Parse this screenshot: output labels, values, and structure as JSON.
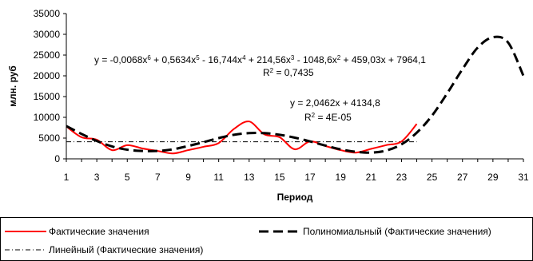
{
  "chart_data": {
    "type": "line",
    "title": "",
    "xlabel": "Период",
    "ylabel": "млн. руб",
    "ylim": [
      0,
      35000
    ],
    "xlim": [
      1,
      31
    ],
    "x_ticks": [
      "1",
      "3",
      "5",
      "7",
      "9",
      "11",
      "13",
      "15",
      "17",
      "19",
      "21",
      "23",
      "25",
      "27",
      "29",
      "31"
    ],
    "y_ticks": [
      "0",
      "5000",
      "10000",
      "15000",
      "20000",
      "25000",
      "30000",
      "35000"
    ],
    "grid": false,
    "legend_position": "bottom",
    "series": [
      {
        "name": "Фактические значения",
        "color": "#ff0000",
        "style": "solid",
        "x": [
          1,
          2,
          3,
          4,
          5,
          6,
          7,
          8,
          9,
          10,
          11,
          12,
          13,
          14,
          15,
          16,
          17,
          18,
          19,
          20,
          21,
          22,
          23,
          24
        ],
        "values": [
          7800,
          5200,
          4600,
          2100,
          3300,
          2500,
          1900,
          1300,
          2100,
          2900,
          3800,
          7200,
          9000,
          5900,
          5200,
          2300,
          4200,
          3100,
          2100,
          1500,
          2400,
          3300,
          4200,
          8400
        ]
      },
      {
        "name": "Полиномиальный (Фактические значения)",
        "color": "#000000",
        "style": "dashed",
        "x": [
          1,
          2,
          3,
          4,
          5,
          6,
          7,
          8,
          9,
          10,
          11,
          12,
          13,
          14,
          15,
          16,
          17,
          18,
          19,
          20,
          21,
          22,
          23,
          24,
          25,
          26,
          27,
          28,
          29,
          30,
          31
        ],
        "values": [
          7900,
          6000,
          4300,
          3000,
          2200,
          1900,
          1900,
          2300,
          3100,
          4000,
          5000,
          5800,
          6200,
          6200,
          5800,
          5100,
          4200,
          3200,
          2300,
          1700,
          1500,
          2000,
          3500,
          6300,
          10400,
          15800,
          21600,
          26800,
          29300,
          28000,
          20000
        ]
      },
      {
        "name": "Линейный (Фактические значения)",
        "color": "#000000",
        "style": "dash-dot",
        "x": [
          1,
          24
        ],
        "values": [
          4100,
          4100
        ]
      }
    ],
    "annotations": [
      {
        "text": "y = -0,0068x6 + 0,5634x5 - 16,744x4 + 214,56x3 - 1048,6x2 + 459,03x + 7964,1"
      },
      {
        "text": "R2 = 0,7435"
      },
      {
        "text": "y = 2,0462x + 4134,8"
      },
      {
        "text": "R2 = 4E-05"
      }
    ]
  }
}
